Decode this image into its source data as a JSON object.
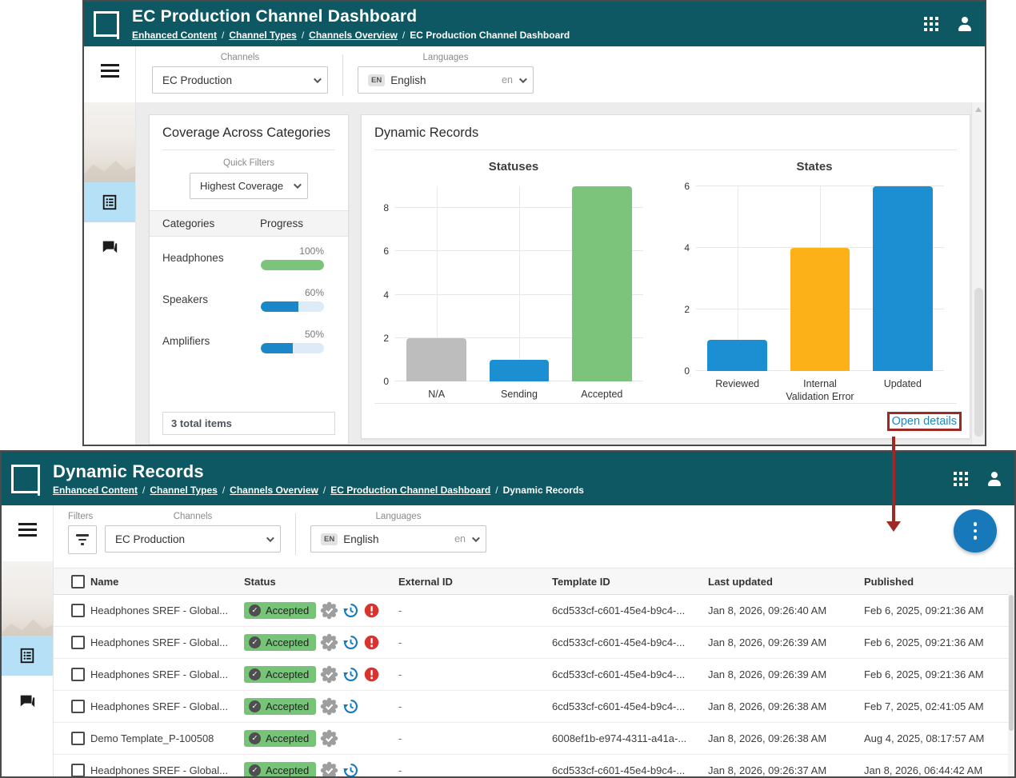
{
  "annotation": {
    "color": "#9e2823",
    "target_label": "Open details"
  },
  "colors": {
    "teal_header": "#0d5862",
    "link_blue": "#1b87c9",
    "badge_green": "#77c378",
    "seal_gray": "#9e9e9e",
    "history_blue": "#1779ba",
    "error_red": "#d8332f",
    "bar_gray": "#bdbdbd",
    "bar_blue": "#1b8fd1",
    "bar_green": "#7cc47c",
    "bar_orange": "#fbb117",
    "progress_track": "#dcebf7",
    "sidebar_highlight": "#b5e0f5",
    "fab_blue": "#1779ba",
    "annotation_red": "#9e2823"
  },
  "shot1": {
    "header": {
      "title": "EC Production Channel Dashboard",
      "breadcrumbs": [
        {
          "label": "Enhanced Content",
          "link": true
        },
        {
          "label": "Channel Types",
          "link": true
        },
        {
          "label": "Channels Overview",
          "link": true
        },
        {
          "label": "EC Production Channel Dashboard",
          "link": false
        }
      ]
    },
    "filters": {
      "channels_label": "Channels",
      "channels_value": "EC Production",
      "languages_label": "Languages",
      "language_chip": "EN",
      "language_name": "English",
      "language_code": "en"
    },
    "coverage": {
      "title": "Coverage Across Categories",
      "quick_filters_label": "Quick Filters",
      "quick_filter_value": "Highest Coverage",
      "columns": {
        "categories": "Categories",
        "progress": "Progress"
      },
      "rows": [
        {
          "category": "Headphones",
          "percent": 100,
          "percent_label": "100%",
          "bar_color": "#7cc47c"
        },
        {
          "category": "Speakers",
          "percent": 60,
          "percent_label": "60%",
          "bar_color": "#1b87c9"
        },
        {
          "category": "Amplifiers",
          "percent": 50,
          "percent_label": "50%",
          "bar_color": "#1b87c9"
        }
      ],
      "footer": "3 total items"
    },
    "records_card": {
      "title": "Dynamic Records",
      "open_details_label": "Open details"
    }
  },
  "chart_data": [
    {
      "type": "bar",
      "title": "Statuses",
      "categories": [
        "N/A",
        "Sending",
        "Accepted"
      ],
      "values": [
        2,
        1,
        9
      ],
      "bar_colors": [
        "#bdbdbd",
        "#1b8fd1",
        "#7cc47c"
      ],
      "yticks": [
        0,
        2,
        4,
        6,
        8
      ],
      "ylim": [
        0,
        9
      ],
      "grid": true,
      "legend": false
    },
    {
      "type": "bar",
      "title": "States",
      "categories": [
        "Reviewed",
        "Internal Validation Error",
        "Updated"
      ],
      "values": [
        1,
        4,
        6
      ],
      "bar_colors": [
        "#1b8fd1",
        "#fbb117",
        "#1b8fd1"
      ],
      "yticks": [
        0,
        2,
        4,
        6
      ],
      "ylim": [
        0,
        6
      ],
      "grid": true,
      "legend": false
    }
  ],
  "shot2": {
    "header": {
      "title": "Dynamic Records",
      "breadcrumbs": [
        {
          "label": "Enhanced Content",
          "link": true
        },
        {
          "label": "Channel Types",
          "link": true
        },
        {
          "label": "Channels Overview",
          "link": true
        },
        {
          "label": "EC Production Channel Dashboard",
          "link": true
        },
        {
          "label": "Dynamic Records",
          "link": false
        }
      ]
    },
    "filters": {
      "filters_label": "Filters",
      "channels_label": "Channels",
      "channels_value": "EC Production",
      "languages_label": "Languages",
      "language_chip": "EN",
      "language_name": "English",
      "language_code": "en"
    },
    "table": {
      "columns": [
        "Name",
        "Status",
        "External ID",
        "Template ID",
        "Last updated",
        "Published"
      ],
      "rows": [
        {
          "name": "Headphones SREF - Global...",
          "status": "Accepted",
          "status_icons": [
            "seal",
            "history",
            "error"
          ],
          "external_id": "-",
          "template_id": "6cd533cf-c601-45e4-b9c4-...",
          "last_updated": "Jan 8, 2026, 09:26:40 AM",
          "published": "Feb 6, 2025, 09:21:36 AM"
        },
        {
          "name": "Headphones SREF - Global...",
          "status": "Accepted",
          "status_icons": [
            "seal",
            "history",
            "error"
          ],
          "external_id": "-",
          "template_id": "6cd533cf-c601-45e4-b9c4-...",
          "last_updated": "Jan 8, 2026, 09:26:39 AM",
          "published": "Feb 6, 2025, 09:21:36 AM"
        },
        {
          "name": "Headphones SREF - Global...",
          "status": "Accepted",
          "status_icons": [
            "seal",
            "history",
            "error"
          ],
          "external_id": "-",
          "template_id": "6cd533cf-c601-45e4-b9c4-...",
          "last_updated": "Jan 8, 2026, 09:26:39 AM",
          "published": "Feb 6, 2025, 09:21:36 AM"
        },
        {
          "name": "Headphones SREF - Global...",
          "status": "Accepted",
          "status_icons": [
            "seal",
            "history"
          ],
          "external_id": "-",
          "template_id": "6cd533cf-c601-45e4-b9c4-...",
          "last_updated": "Jan 8, 2026, 09:26:38 AM",
          "published": "Feb 7, 2025, 02:41:05 AM"
        },
        {
          "name": "Demo Template_P-100508",
          "status": "Accepted",
          "status_icons": [
            "seal"
          ],
          "external_id": "-",
          "template_id": "6008ef1b-e974-4311-a41a-...",
          "last_updated": "Jan 8, 2026, 09:26:38 AM",
          "published": "Aug 4, 2025, 08:17:57 AM"
        },
        {
          "name": "Headphones SREF - Global...",
          "status": "Accepted",
          "status_icons": [
            "seal",
            "history"
          ],
          "external_id": "-",
          "template_id": "6cd533cf-c601-45e4-b9c4-...",
          "last_updated": "Jan 8, 2026, 09:26:37 AM",
          "published": "Jan 8, 2026, 06:44:42 AM"
        }
      ]
    }
  }
}
